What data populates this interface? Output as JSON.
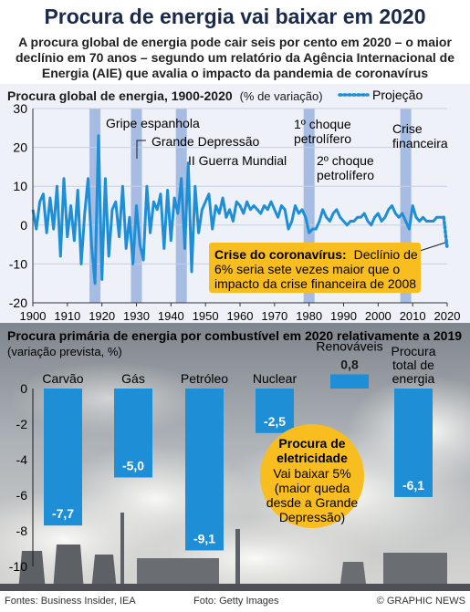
{
  "header": {
    "title": "Procura de energia vai baixar em 2020",
    "subtitle_lines": [
      "A procura global de energia pode cair seis por cento em 2020 – o maior",
      "declínio em 70 anos – segundo um relatório da Agência Internacional de",
      "Energia (AIE) que avalia o impacto da pandemia de coronavírus"
    ]
  },
  "colors": {
    "line": "#1e8fd6",
    "bar": "#1e8fd6",
    "band": "#9db6e0",
    "callout": "#f8bd1f",
    "title": "#1a2a4a"
  },
  "chart_data": [
    {
      "type": "line",
      "title": "Procura global de energia, 1900-2020",
      "title_unit": "(% de variação)",
      "legend": {
        "label": "Projeção",
        "placement": "top-right"
      },
      "ylim": [
        -20,
        30
      ],
      "yticks": [
        30,
        20,
        10,
        0,
        -10,
        -20
      ],
      "xlim": [
        1900,
        2020
      ],
      "xticks": [
        1900,
        1910,
        1920,
        1930,
        1940,
        1950,
        1960,
        1970,
        1980,
        1990,
        2000,
        2010,
        2020
      ],
      "series": [
        {
          "x": [
            1900,
            1901,
            1902,
            1903,
            1904,
            1905,
            1906,
            1907,
            1908,
            1909,
            1910,
            1911,
            1912,
            1913,
            1914,
            1915,
            1916,
            1917,
            1918,
            1919,
            1920,
            1921,
            1922,
            1923,
            1924,
            1925,
            1926,
            1927,
            1928,
            1929,
            1930,
            1931,
            1932,
            1933,
            1934,
            1935,
            1936,
            1937,
            1938,
            1939,
            1940,
            1941,
            1942,
            1943,
            1944,
            1945,
            1946,
            1947,
            1948,
            1949,
            1950,
            1951,
            1952,
            1953,
            1954,
            1955,
            1956,
            1957,
            1958,
            1959,
            1960,
            1961,
            1962,
            1963,
            1964,
            1965,
            1966,
            1967,
            1968,
            1969,
            1970,
            1971,
            1972,
            1973,
            1974,
            1975,
            1976,
            1977,
            1978,
            1979,
            1980,
            1981,
            1982,
            1983,
            1984,
            1985,
            1986,
            1987,
            1988,
            1989,
            1990,
            1991,
            1992,
            1993,
            1994,
            1995,
            1996,
            1997,
            1998,
            1999,
            2000,
            2001,
            2002,
            2003,
            2004,
            2005,
            2006,
            2007,
            2008,
            2009,
            2010,
            2011,
            2012,
            2013,
            2014,
            2015,
            2016,
            2017,
            2018,
            2019
          ],
          "y": [
            4,
            -1,
            6,
            8,
            -2,
            7,
            -1,
            10,
            -8,
            12,
            -3,
            5,
            -4,
            9,
            -10,
            3,
            12,
            -5,
            -15,
            23,
            -14,
            12,
            -8,
            4,
            6,
            -3,
            10,
            -6,
            2,
            -10,
            5,
            -5,
            -9,
            10,
            -2,
            6,
            4,
            8,
            -6,
            9,
            -4,
            7,
            3,
            12,
            -6,
            16,
            -12,
            10,
            -2,
            4,
            6,
            8,
            -1,
            5,
            3,
            7,
            2,
            4,
            1,
            6,
            5,
            3,
            6,
            4,
            5,
            4,
            3,
            5,
            4,
            6,
            4,
            2,
            5,
            4,
            -1,
            1,
            5,
            3,
            4,
            2,
            -2,
            -1,
            -1,
            1,
            4,
            2,
            1,
            3,
            4,
            2,
            1,
            0,
            1,
            1,
            2,
            2,
            3,
            1,
            0,
            2,
            3,
            1,
            2,
            4,
            5,
            3,
            2,
            3,
            1,
            -1,
            5,
            2,
            1,
            2,
            1,
            1,
            1,
            2,
            2,
            2
          ],
          "band_years": [
            1918,
            1930,
            1943,
            1980,
            2008
          ]
        },
        {
          "name": "Projeção",
          "x": [
            2019,
            2020
          ],
          "y": [
            2,
            -6
          ]
        }
      ],
      "annotations": [
        {
          "text": "Gripe espanhola",
          "x": 1919
        },
        {
          "text": "Grande Depressão",
          "x": 1931
        },
        {
          "text": "II Guerra Mundial",
          "x": 1944
        },
        {
          "text_lines": [
            "1º choque",
            "petrolífero"
          ],
          "x": 1973
        },
        {
          "text_lines": [
            "2º choque",
            "petrolífero"
          ],
          "x": 1980
        },
        {
          "text_lines": [
            "Crise",
            "financeira"
          ],
          "x": 2008
        }
      ],
      "callout": {
        "bold": "Crise do coronavírus:",
        "text_lines": [
          "Declínio de",
          "6% seria sete vezes maior que o",
          "impacto da crise financeira de 2008"
        ]
      }
    },
    {
      "type": "bar",
      "title": "Procura primária de energia por combustível em 2020 relativamente a 2019",
      "subtitle": "(variação prevista, %)",
      "ylim": [
        -10,
        0
      ],
      "yticks": [
        0,
        -2,
        -4,
        -6,
        -8,
        -10
      ],
      "categories": [
        "Carvão",
        "Gás",
        "Petróleo",
        "Nuclear",
        "Renováveis",
        "Procura total de energia"
      ],
      "category_label_lines": [
        [
          "Carvão"
        ],
        [
          "Gás"
        ],
        [
          "Petróleo"
        ],
        [
          "Nuclear"
        ],
        [
          "Renováveis"
        ],
        [
          "Procura",
          "total de",
          "energia"
        ]
      ],
      "values": [
        -7.7,
        -5.0,
        -9.1,
        -2.5,
        0.8,
        -6.1
      ],
      "value_labels": [
        "-7,7",
        "-5,0",
        "-9,1",
        "-2,5",
        "0,8",
        "-6,1"
      ],
      "callout": {
        "bold_lines": [
          "Procura de",
          "eletricidade"
        ],
        "text_lines": [
          "Vai baixar 5%",
          "(maior queda",
          "desde a Grande",
          "Depressão)"
        ]
      }
    }
  ],
  "footer": {
    "sources": "Fontes: Business Insider, IEA",
    "photo": "Foto: Getty Images",
    "brand": "© GRAPHIC NEWS"
  }
}
